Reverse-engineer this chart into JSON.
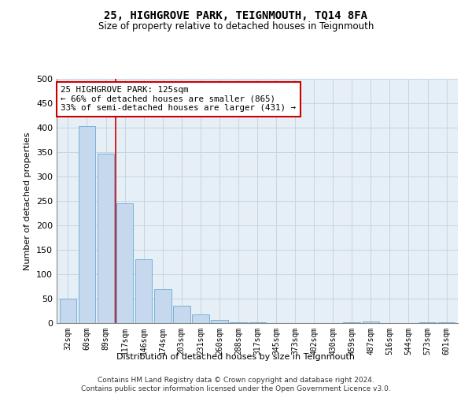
{
  "title": "25, HIGHGROVE PARK, TEIGNMOUTH, TQ14 8FA",
  "subtitle": "Size of property relative to detached houses in Teignmouth",
  "xlabel": "Distribution of detached houses by size in Teignmouth",
  "ylabel": "Number of detached properties",
  "categories": [
    "32sqm",
    "60sqm",
    "89sqm",
    "117sqm",
    "146sqm",
    "174sqm",
    "203sqm",
    "231sqm",
    "260sqm",
    "288sqm",
    "317sqm",
    "345sqm",
    "373sqm",
    "402sqm",
    "430sqm",
    "459sqm",
    "487sqm",
    "516sqm",
    "544sqm",
    "573sqm",
    "601sqm"
  ],
  "values": [
    50,
    403,
    347,
    245,
    130,
    70,
    35,
    18,
    6,
    2,
    1,
    0,
    0,
    0,
    0,
    2,
    4,
    0,
    0,
    1,
    2
  ],
  "bar_color": "#c5d8ee",
  "bar_edge_color": "#6aaad4",
  "vline_index": 2.5,
  "annotation_text": "25 HIGHGROVE PARK: 125sqm\n← 66% of detached houses are smaller (865)\n33% of semi-detached houses are larger (431) →",
  "annotation_box_color": "#ffffff",
  "annotation_box_edge": "#cc0000",
  "vline_color": "#cc0000",
  "grid_color": "#c5d5e5",
  "bg_color": "#e6eef6",
  "footer": "Contains HM Land Registry data © Crown copyright and database right 2024.\nContains public sector information licensed under the Open Government Licence v3.0.",
  "ylim": [
    0,
    500
  ],
  "yticks": [
    0,
    50,
    100,
    150,
    200,
    250,
    300,
    350,
    400,
    450,
    500
  ]
}
